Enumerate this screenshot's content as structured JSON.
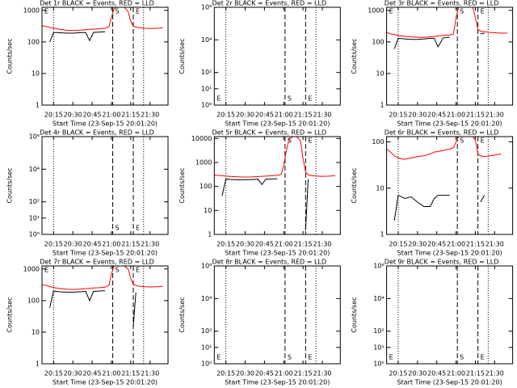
{
  "chart_data": [
    {
      "type": "line",
      "title": "Det 1r BLACK = Events, RED = LLD",
      "xlabel": "Start Time (23-Sep-15 20:01:20)",
      "ylabel": "Counts/sec",
      "log_y": true,
      "xlim": [
        "20:06",
        "21:44"
      ],
      "xticks": [
        "20:15",
        "20:30",
        "20:45",
        "21:00",
        "21:15",
        "21:30"
      ],
      "ylim": [
        1,
        1250
      ],
      "yticks": [
        1,
        10,
        100,
        1000
      ],
      "x": [
        "20:06",
        "20:09",
        "20:12",
        "20:15",
        "20:20",
        "20:25",
        "20:30",
        "20:35",
        "20:40",
        "20:43",
        "20:46",
        "20:50",
        "20:55",
        "20:58",
        "21:00",
        "21:02",
        "21:04",
        "21:07",
        "21:10",
        "21:13",
        "21:15",
        "21:17",
        "21:19",
        "21:22",
        "21:26",
        "21:30",
        "21:35",
        "21:40"
      ],
      "series": [
        {
          "name": "LLD",
          "color": "#ff0000",
          "values": [
            330,
            310,
            290,
            270,
            250,
            235,
            230,
            235,
            245,
            250,
            255,
            260,
            270,
            300,
            600,
            1100,
            1250,
            1250,
            1250,
            900,
            450,
            320,
            290,
            280,
            270,
            265,
            270,
            280
          ]
        },
        {
          "name": "Events",
          "color": "#000000",
          "values": [
            null,
            null,
            100,
            200,
            195,
            190,
            190,
            195,
            200,
            110,
            200,
            205,
            210,
            null,
            null,
            null,
            null,
            null,
            null,
            null,
            null,
            null,
            null,
            null,
            null,
            null,
            null,
            null
          ]
        }
      ],
      "marker_label_position": "top",
      "markers": [
        {
          "x": "20:06",
          "label": "E",
          "style": "none"
        },
        {
          "x": "20:15",
          "style": "dotted"
        },
        {
          "x": "21:01",
          "label": "S",
          "style": "dashed"
        },
        {
          "x": "21:17",
          "label": "E",
          "style": "dashed"
        },
        {
          "x": "21:25",
          "style": "dotted"
        }
      ]
    },
    {
      "type": "line",
      "title": "Det 2r BLACK = Events, RED = LLD",
      "xlabel": "Start Time (23-Sep-15 20:01:20)",
      "ylabel": "Counts/sec",
      "log_y": true,
      "xlim": [
        "20:06",
        "21:44"
      ],
      "xticks": [
        "20:15",
        "20:30",
        "20:45",
        "21:00",
        "21:15",
        "21:30"
      ],
      "ylim": [
        1,
        1000000
      ],
      "yticks": [
        {
          "value": 1,
          "label": "10⁰"
        },
        {
          "value": 10,
          "label": "10¹"
        },
        {
          "value": 100,
          "label": "10²"
        },
        {
          "value": 10000,
          "label": "10⁴"
        },
        {
          "value": 1000000,
          "label": "10⁶"
        }
      ],
      "marker_label_position": "bottom",
      "markers": [
        {
          "x": "20:06",
          "label": "E",
          "style": "none"
        },
        {
          "x": "20:15",
          "style": "dotted"
        },
        {
          "x": "21:01",
          "label": "S",
          "style": "dashed"
        },
        {
          "x": "21:17",
          "label": "E",
          "style": "dashed"
        },
        {
          "x": "21:25",
          "style": "dotted"
        }
      ]
    },
    {
      "type": "line",
      "title": "Det 3r BLACK = Events, RED = LLD",
      "xlabel": "Start Time (23-Sep-15 20:01:20)",
      "ylabel": "Counts/sec",
      "log_y": true,
      "xlim": [
        "20:06",
        "21:44"
      ],
      "xticks": [
        "20:15",
        "20:30",
        "20:45",
        "21:00",
        "21:15",
        "21:30"
      ],
      "ylim": [
        1,
        1250
      ],
      "yticks": [
        1,
        10,
        100,
        1000
      ],
      "x": [
        "20:06",
        "20:09",
        "20:12",
        "20:15",
        "20:20",
        "20:25",
        "20:30",
        "20:35",
        "20:40",
        "20:43",
        "20:46",
        "20:50",
        "20:55",
        "20:58",
        "21:00",
        "21:02",
        "21:04",
        "21:07",
        "21:10",
        "21:13",
        "21:15",
        "21:17",
        "21:19",
        "21:22",
        "21:26",
        "21:30",
        "21:35",
        "21:40"
      ],
      "series": [
        {
          "name": "LLD",
          "color": "#ff0000",
          "values": [
            200,
            180,
            170,
            160,
            150,
            145,
            140,
            140,
            145,
            150,
            155,
            160,
            165,
            180,
            600,
            1250,
            1250,
            1250,
            1250,
            1250,
            600,
            250,
            220,
            210,
            200,
            195,
            190,
            190
          ]
        },
        {
          "name": "Events",
          "color": "#000000",
          "values": [
            null,
            null,
            60,
            130,
            125,
            120,
            120,
            125,
            130,
            130,
            70,
            135,
            140,
            null,
            null,
            null,
            null,
            null,
            null,
            null,
            null,
            null,
            180,
            190,
            null,
            null,
            null,
            null
          ]
        }
      ],
      "marker_label_position": "top",
      "markers": [
        {
          "x": "20:06",
          "label": "E",
          "style": "none"
        },
        {
          "x": "20:15",
          "style": "dotted"
        },
        {
          "x": "21:01",
          "label": "S",
          "style": "dashed"
        },
        {
          "x": "21:17",
          "label": "E",
          "style": "dashed"
        },
        {
          "x": "21:25",
          "style": "dotted"
        }
      ]
    },
    {
      "type": "line",
      "title": "Det 4r BLACK = Events, RED = LLD",
      "xlabel": "Start Time (23-Sep-15 20:01:20)",
      "ylabel": "Counts/sec",
      "log_y": true,
      "xlim": [
        "20:06",
        "21:44"
      ],
      "xticks": [
        "20:15",
        "20:30",
        "20:45",
        "21:00",
        "21:15",
        "21:30"
      ],
      "ylim": [
        1,
        1000000
      ],
      "yticks": [
        {
          "value": 1,
          "label": "10⁰"
        },
        {
          "value": 10,
          "label": "10¹"
        },
        {
          "value": 100,
          "label": "10²"
        },
        {
          "value": 10000,
          "label": "10⁴"
        },
        {
          "value": 1000000,
          "label": "10⁶"
        }
      ],
      "marker_label_position": "bottom",
      "markers": [
        {
          "x": "20:15",
          "style": "dotted"
        },
        {
          "x": "21:01",
          "label": "S",
          "style": "dashed"
        },
        {
          "x": "21:17",
          "label": "E",
          "style": "dashed"
        },
        {
          "x": "21:25",
          "style": "dotted"
        }
      ]
    },
    {
      "type": "line",
      "title": "Det 5r BLACK = Events, RED = LLD",
      "xlabel": "Start Time (23-Sep-15 20:01:20)",
      "ylabel": "Counts/sec",
      "log_y": true,
      "xlim": [
        "20:06",
        "21:44"
      ],
      "xticks": [
        "20:15",
        "20:30",
        "20:45",
        "21:00",
        "21:15",
        "21:30"
      ],
      "ylim": [
        1,
        12000
      ],
      "yticks": [
        1,
        10,
        100,
        1000,
        10000
      ],
      "x": [
        "20:06",
        "20:09",
        "20:12",
        "20:15",
        "20:20",
        "20:25",
        "20:30",
        "20:35",
        "20:40",
        "20:43",
        "20:46",
        "20:50",
        "20:55",
        "20:58",
        "21:00",
        "21:02",
        "21:04",
        "21:07",
        "21:10",
        "21:13",
        "21:15",
        "21:17",
        "21:19",
        "21:22",
        "21:26",
        "21:30",
        "21:35",
        "21:40"
      ],
      "series": [
        {
          "name": "LLD",
          "color": "#ff0000",
          "values": [
            300,
            290,
            280,
            270,
            260,
            250,
            245,
            250,
            260,
            265,
            270,
            280,
            290,
            320,
            800,
            3000,
            9000,
            12000,
            12000,
            8000,
            1500,
            400,
            300,
            280,
            270,
            265,
            270,
            280
          ]
        },
        {
          "name": "Events",
          "color": "#000000",
          "values": [
            null,
            null,
            40,
            200,
            195,
            190,
            190,
            195,
            200,
            120,
            200,
            205,
            210,
            null,
            null,
            null,
            null,
            null,
            null,
            null,
            null,
            1.5,
            200,
            null,
            null,
            null,
            null,
            null
          ]
        }
      ],
      "marker_label_position": "top",
      "markers": [
        {
          "x": "20:15",
          "style": "dotted"
        },
        {
          "x": "21:01",
          "label": "S",
          "style": "dashed"
        },
        {
          "x": "21:17",
          "label": "E",
          "style": "dashed"
        },
        {
          "x": "21:25",
          "style": "dotted"
        }
      ]
    },
    {
      "type": "line",
      "title": "Det 6r BLACK = Events, RED = LLD",
      "xlabel": "Start Time (23-Sep-15 20:01:20)",
      "ylabel": "Counts/sec",
      "log_y": true,
      "xlim": [
        "20:06",
        "21:44"
      ],
      "xticks": [
        "20:15",
        "20:30",
        "20:45",
        "21:00",
        "21:15",
        "21:30"
      ],
      "ylim": [
        1,
        130
      ],
      "yticks": [
        1,
        10,
        100
      ],
      "x": [
        "20:06",
        "20:09",
        "20:12",
        "20:15",
        "20:20",
        "20:25",
        "20:30",
        "20:35",
        "20:40",
        "20:43",
        "20:46",
        "20:50",
        "20:55",
        "20:58",
        "21:00",
        "21:02",
        "21:04",
        "21:07",
        "21:10",
        "21:13",
        "21:15",
        "21:17",
        "21:19",
        "21:22",
        "21:26",
        "21:30",
        "21:35",
        "21:40"
      ],
      "series": [
        {
          "name": "LLD",
          "color": "#ff0000",
          "values": [
            70,
            60,
            50,
            45,
            42,
            45,
            48,
            50,
            55,
            60,
            62,
            65,
            70,
            75,
            100,
            130,
            130,
            130,
            130,
            130,
            110,
            55,
            50,
            48,
            50,
            52,
            55,
            null
          ]
        },
        {
          "name": "Events",
          "color": "#000000",
          "values": [
            null,
            null,
            2,
            7,
            6,
            6.5,
            5,
            4,
            4,
            6,
            7,
            7,
            7,
            null,
            null,
            null,
            null,
            null,
            null,
            null,
            null,
            null,
            5,
            7,
            null,
            null,
            null,
            null
          ]
        }
      ],
      "marker_label_position": "top",
      "markers": [
        {
          "x": "20:15",
          "style": "dotted"
        },
        {
          "x": "21:01",
          "label": "S",
          "style": "dashed"
        },
        {
          "x": "21:17",
          "label": "E",
          "style": "dashed"
        },
        {
          "x": "21:25",
          "style": "dotted"
        }
      ]
    },
    {
      "type": "line",
      "title": "Det 7r BLACK = Events, RED = LLD",
      "xlabel": "Start Time (23-Sep-15 20:01:20)",
      "ylabel": "Counts/sec",
      "log_y": true,
      "xlim": [
        "20:06",
        "21:44"
      ],
      "xticks": [
        "20:15",
        "20:30",
        "20:45",
        "21:00",
        "21:15",
        "21:30"
      ],
      "ylim": [
        1,
        1250
      ],
      "yticks": [
        1,
        10,
        100,
        1000
      ],
      "x": [
        "20:06",
        "20:09",
        "20:12",
        "20:15",
        "20:20",
        "20:25",
        "20:30",
        "20:35",
        "20:40",
        "20:43",
        "20:46",
        "20:50",
        "20:55",
        "20:58",
        "21:00",
        "21:02",
        "21:04",
        "21:07",
        "21:10",
        "21:13",
        "21:15",
        "21:17",
        "21:19",
        "21:22",
        "21:26",
        "21:30",
        "21:35",
        "21:40"
      ],
      "series": [
        {
          "name": "LLD",
          "color": "#ff0000",
          "values": [
            320,
            300,
            280,
            260,
            240,
            230,
            225,
            230,
            240,
            245,
            250,
            255,
            265,
            300,
            700,
            1250,
            1250,
            1250,
            1250,
            1000,
            500,
            330,
            300,
            285,
            275,
            270,
            275,
            285
          ]
        },
        {
          "name": "Events",
          "color": "#000000",
          "values": [
            null,
            null,
            60,
            200,
            190,
            185,
            185,
            190,
            195,
            100,
            195,
            200,
            205,
            null,
            null,
            null,
            null,
            null,
            null,
            null,
            null,
            15,
            180,
            null,
            null,
            null,
            null,
            null
          ]
        }
      ],
      "marker_label_position": "top",
      "markers": [
        {
          "x": "20:06",
          "label": "E",
          "style": "none"
        },
        {
          "x": "20:15",
          "style": "dotted"
        },
        {
          "x": "21:01",
          "label": "S",
          "style": "dashed"
        },
        {
          "x": "21:17",
          "label": "E",
          "style": "dashed"
        },
        {
          "x": "21:25",
          "style": "dotted"
        }
      ]
    },
    {
      "type": "line",
      "title": "Det 8r BLACK = Events, RED = LLD",
      "xlabel": "Start Time (23-Sep-15 20:01:20)",
      "ylabel": "Counts/sec",
      "log_y": true,
      "xlim": [
        "20:06",
        "21:44"
      ],
      "xticks": [
        "20:15",
        "20:30",
        "20:45",
        "21:00",
        "21:15",
        "21:30"
      ],
      "ylim": [
        1,
        1000000
      ],
      "yticks": [
        {
          "value": 1,
          "label": "10⁰"
        },
        {
          "value": 10,
          "label": "10¹"
        },
        {
          "value": 100,
          "label": "10²"
        },
        {
          "value": 10000,
          "label": "10⁴"
        },
        {
          "value": 1000000,
          "label": "10⁶"
        }
      ],
      "marker_label_position": "bottom",
      "markers": [
        {
          "x": "20:06",
          "label": "E",
          "style": "none"
        },
        {
          "x": "20:15",
          "style": "dotted"
        },
        {
          "x": "21:01",
          "label": "S",
          "style": "dashed"
        },
        {
          "x": "21:17",
          "label": "E",
          "style": "dashed"
        },
        {
          "x": "21:25",
          "style": "dotted"
        }
      ]
    },
    {
      "type": "line",
      "title": "Det 9r BLACK = Events, RED = LLD",
      "xlabel": "Start Time (23-Sep-15 20:01:20)",
      "ylabel": "Counts/sec",
      "log_y": true,
      "xlim": [
        "20:06",
        "21:44"
      ],
      "xticks": [
        "20:15",
        "20:30",
        "20:45",
        "21:00",
        "21:15",
        "21:30"
      ],
      "ylim": [
        1,
        1000000
      ],
      "yticks": [
        {
          "value": 1,
          "label": "10⁰"
        },
        {
          "value": 10,
          "label": "10¹"
        },
        {
          "value": 100,
          "label": "10²"
        },
        {
          "value": 10000,
          "label": "10⁴"
        },
        {
          "value": 1000000,
          "label": "10⁶"
        }
      ],
      "marker_label_position": "bottom",
      "markers": [
        {
          "x": "20:06",
          "label": "E",
          "style": "none"
        },
        {
          "x": "20:15",
          "style": "dotted"
        },
        {
          "x": "21:01",
          "label": "S",
          "style": "dashed"
        },
        {
          "x": "21:17",
          "label": "E",
          "style": "dashed"
        },
        {
          "x": "21:25",
          "style": "dotted"
        }
      ]
    }
  ]
}
